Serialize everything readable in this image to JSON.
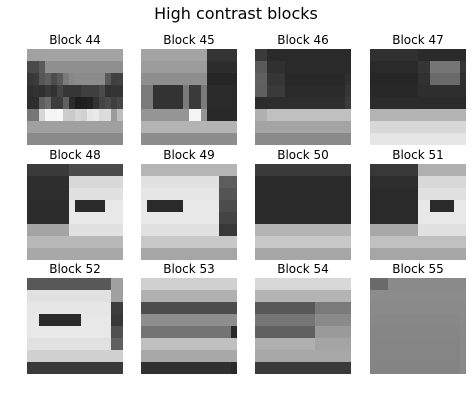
{
  "title": "High contrast blocks",
  "blocks": [
    {
      "label": "Block 44",
      "pixels": [
        "a1a1a2a3a3a3a3a3a3a3a3a3a3a3a3a3",
        "a1a1a2a3a3a3a3a3a3a3a3a3a3a3a3a3",
        "4a4a5a8f8f8f8f8f8f8f8f8f8f8f8f8f",
        "4a4a5a8f8f8f8f8f8f8f8f8f8f8f8f8f",
        "373b565f4c5a7b878b8b8b8b8b5a4042",
        "373b565f4c5a7b878b8b8b8b8b5a4042",
        "2f32303a32453636363f3f3f4b313534",
        "2f32303a32453636363f3f3f4b313534",
        "2d2d5f6c3d3d5f2b1c1f2232444b3f47",
        "2d2d5f6c3d3d5f2b1c1f2232444b3f47",
        "7777d7f5f5f7cccad5d0e6e9dbdd9cbe",
        "7777d7f5f5f7cccad5d0e6e9dbdd9cbe",
        "a0a0a0a0a0a0a0a0a0a0a0a0a0a0a0a0",
        "a0a0a0a0a0a0a0a0a0a0a0a0a0a0a0a0",
        "8a8a8a8a8a8a8a8a8a8a8a8a8a8a8a8a",
        "8a8a8a8a8a8a8a8a8a8a8a8a8a8a8a8a"
      ]
    },
    {
      "label": "Block 45",
      "pixels": [
        "a4a4a4a4a4a4a4a4a4a4a43434343434",
        "a4a4a4a4a4a4a4a4a4a4a43434343434",
        "9c9c9c9c9c9c9c9c9c9c9c2c2c2c2c2c",
        "9c9c9c9c9c9c9c9c9c9c9c2c2c2c2c2c",
        "8e8e8e8e8e8e8e8e8e8e8e2626262626",
        "8e8e8e8e8e8e8e8e8e8e8e2626262626",
        "7a7a33333333337a3a3a7a2a2a2a2a2a",
        "7a7a33333333337a3a3a7a2a2a2a2a2a",
        "7a7a33333333337a3a3a7a2a2a2a2a2a",
        "7a7a33333333337a3a3a7a2a2a2a2a2a",
        "9595959595959595f5f5952929292929",
        "9595959595959595f5f5952929292929",
        "b4b4b4b4b4b4b4b4b4b4b4b4b4b4b4b4",
        "b4b4b4b4b4b4b4b4b4b4b4b4b4b4b4b4",
        "8d8d8d8d8d8d8d8d8d8d8d8d8d8d8d8d",
        "8d8d8d8d8d8d8d8d8d8d8d8d8d8d8d8d"
      ]
    },
    {
      "label": "Block 46",
      "pixels": [
        "3a3a2a2a2a2a2a2a2a2a2a2a2a2a2a2a",
        "3a3a2a2a2a2a2a2a2a2a2a2a2a2a2a2a",
        "5a5a3030302a2a2a2a2a2a2a2a2a2a2a",
        "5a5a3030302a2a2a2a2a2a2a2a2a2a2a",
        "6060363636282828282828282828282f",
        "6060363636282828282828282828282f",
        "5f5f3a3a3a2a2a2a2a2a2a2a2a2a2a35",
        "5f5f3a3a3a2a2a2a2a2a2a2a2a2a2a35",
        "2c2c2d2d2d2d2d2d2d2d2d2d2d2d2d3a",
        "2c2c2d2d2d2d2d2d2d2d2d2d2d2d2d3a",
        "b0b0c0c0c0c0c0c0c0c0c0c0c0c0c0c0",
        "b0b0c0c0c0c0c0c0c0c0c0c0c0c0c0c0",
        "a4a4a4a4a4a4a4a4a4a4a4a4a4a4a4a4",
        "a4a4a4a4a4a4a4a4a4a4a4a4a4a4a4a4",
        "8a8a8a8a8a8a8a8a8a8a8a8a8a8a8a8a",
        "8a8a8a8a8a8a8a8a8a8a8a8a8a8a8a8a"
      ]
    },
    {
      "label": "Block 47",
      "pixels": [
        "30303030303030302a2a2a2a2a2a2a2a",
        "30303030303030302a2a2a2a2a2a2a2a",
        "2a2a2a2a2a2a2a2a3535757575757535",
        "2a2a2a2a2a2a2a2a3535757575757535",
        "262626262626262630306a6a6a6a6a30",
        "262626262626262630306a6a6a6a6a30",
        "28282828282828282e2e2e2e2e2e2e2e",
        "28282828282828282e2e2e2e2e2e2e2e",
        "2c2c2c2c2c2c2c2c2b2b2b2b2b2b2b2b",
        "2c2c2c2c2c2c2c2c2b2b2b2b2b2b2b2b",
        "b4b4b4b4b4b4b4b4b4b4b4b4b4b4b4b4",
        "b4b4b4b4b4b4b4b4b4b4b4b4b4b4b4b4",
        "d8d8d8d8d8d8d8d8d8d8d8d8d8d8d8d8",
        "d8d8d8d8d8d8d8d8d8d8d8d8d8d8d8d8",
        "e6e6e6e6e6e6e6e6e6e6e6e6e6e6e6e6",
        "e6e6e6e6e6e6e6e6e6e6e6e6e6e6e6e6"
      ]
    },
    {
      "label": "Block 48",
      "pixels": [
        "3a3a3a3a3a3a3a4b4b4b4b4b4b4b4b4b",
        "3a3a3a3a3a3a3a4b4b4b4b4b4b4b4b4b",
        "2e2e2e2e2e2e2ed8d8d8d8d8d8d8d8d8",
        "2e2e2e2e2e2e2ed8d8d8d8d8d8d8d8d8",
        "2e2e2e2e2e2e2ee1e1e1e1e1e1e1e1e1",
        "2e2e2e2e2e2e2ee1e1e1e1e1e1e1e1e1",
        "2c2c2c2c2c2c2ce82a2a2a2a2ae8e8e8",
        "2c2c2c2c2c2c2ce82a2a2a2a2ae8e8e8",
        "2c2c2c2c2c2c2ce8e8e8e8e8e8e8e8e8",
        "2c2c2c2c2c2c2ce8e8e8e8e8e8e8e8e8",
        "a4a4a4a4a4a4a4e1e1e1e1e1e1e1e1e1",
        "a4a4a4a4a4a4a4e1e1e1e1e1e1e1e1e1",
        "b8b8b8b8b8b8b8b8b8b8b8b8b8b8b8b8",
        "b8b8b8b8b8b8b8b8b8b8b8b8b8b8b8b8",
        "a8a8a8a8a8a8a8a8a8a8a8a8a8a8a8a8",
        "a8a8a8a8a8a8a8a8a8a8a8a8a8a8a8a8"
      ]
    },
    {
      "label": "Block 49",
      "pixels": [
        "b5b5b5b5b5b5b5b5b5b5b5b5b5b5b5b5",
        "b5b5b5b5b5b5b5b5b5b5b5b5b5b5b5b5",
        "e1e1e1e1e1e1e1e1e1e1e1e1e15d5d5d",
        "e1e1e1e1e1e1e1e1e1e1e1e1e15d5d5d",
        "e6e6e6e6e6e6e6e6e6e6e6e6e6545454",
        "e6e6e6e6e6e6e6e6e6e6e6e6e6545454",
        "e82a2a2a2a2a2ae8e8e8e8e8e84c4c4c",
        "e82a2a2a2a2a2ae8e8e8e8e8e84c4c4c",
        "e8e8e8e8e8e8e8e8e8e8e8e8e8444444",
        "e8e8e8e8e8e8e8e8e8e8e8e8e8444444",
        "e1e1e1e1e1e1e1e1e1e1e1e1e1383838",
        "e1e1e1e1e1e1e1e1e1e1e1e1e1383838",
        "c8c8c8c8c8c8c8c8c8c8c8c8c8c8c8c8",
        "c8c8c8c8c8c8c8c8c8c8c8c8c8c8c8c8",
        "a6a6a6a6a6a6a6a6a6a6a6a6a6a6a6a6",
        "a6a6a6a6a6a6a6a6a6a6a6a6a6a6a6a6"
      ]
    },
    {
      "label": "Block 50",
      "pixels": [
        "3a3a3a3a3a3a3a3a3a3a3a3a3a3a3a3a",
        "3a3a3a3a3a3a3a3a3a3a3a3a3a3a3a3a",
        "2a2a2a2a2a2a2a2a2a2a2a2a2a2a2a2a",
        "2a2a2a2a2a2a2a2a2a2a2a2a2a2a2a2a",
        "2a2a2a2a2a2a2a2a2a2a2a2a2a2a2a2a",
        "2a2a2a2a2a2a2a2a2a2a2a2a2a2a2a2a",
        "2a2a2a2a2a2a2a2a2a2a2a2a2a2a2a2a",
        "2a2a2a2a2a2a2a2a2a2a2a2a2a2a2a2a",
        "2a2a2a2a2a2a2a2a2a2a2a2a2a2a2a2a",
        "2a2a2a2a2a2a2a2a2a2a2a2a2a2a2a2a",
        "b4b4b4b4b4b4b4b4b4b4b4b4b4b4b4b4",
        "b4b4b4b4b4b4b4b4b4b4b4b4b4b4b4b4",
        "c8c8c8c8c8c8c8c8c8c8c8c8c8c8c8c8",
        "c8c8c8c8c8c8c8c8c8c8c8c8c8c8c8c8",
        "a6a6a6a6a6a6a6a6a6a6a6a6a6a6a6a6",
        "a6a6a6a6a6a6a6a6a6a6a6a6a6a6a6a6"
      ]
    },
    {
      "label": "Block 51",
      "pixels": [
        "3838383838383838b0b0b0b0b0b0b0b0",
        "3838383838383838b0b0b0b0b0b0b0b0",
        "2e2e2e2e2e2e2e2ed8d8d8d8d8d8d8d8",
        "2e2e2e2e2e2e2e2ed8d8d8d8d8d8d8d8",
        "2a2a2a2a2a2a2a2ae1e1e1e1e1e1e1e1",
        "2a2a2a2a2a2a2a2ae1e1e1e1e1e1e1e1",
        "2a2a2a2a2a2a2a2ae8e82a2a2a2ae8e8",
        "2a2a2a2a2a2a2a2ae8e82a2a2a2ae8e8",
        "2a2a2a2a2a2a2a2ae8e8e8e8e8e8e8e8",
        "2a2a2a2a2a2a2a2ae8e8e8e8e8e8e8e8",
        "a8a8a8a8a8a8a8a8e1e1e1e1e1e1e1e1",
        "a8a8a8a8a8a8a8a8e1e1e1e1e1e1e1e1",
        "c0c0c0c0c0c0c0c0c0c0c0c0c0c0c0c0",
        "c0c0c0c0c0c0c0c0c0c0c0c0c0c0c0c0",
        "a6a6a6a6a6a6a6a6a6a6a6a6a6a6a6a6",
        "a6a6a6a6a6a6a6a6a6a6a6a6a6a6a6a6"
      ]
    },
    {
      "label": "Block 52",
      "pixels": [
        "5858585858585858585858585858a0a0",
        "5858585858585858585858585858a0a0",
        "e1e1e1e1e1e1e1e1e1e1e1e1e1e1a0a0",
        "e1e1e1e1e1e1e1e1e1e1e1e1e1e1a0a0",
        "e6e6e6e6e6e6e6e6e6e6e6e6e6e63d3d",
        "e6e6e6e6e6e6e6e6e6e6e6e6e6e63d3d",
        "e8e82a2a2a2a2a2a2ae8e8e8e8e83838",
        "e8e82a2a2a2a2a2a2ae8e8e8e8e83838",
        "e8e8e8e8e8e8e8e8e8e8e8e8e8e85050",
        "e8e8e8e8e8e8e8e8e8e8e8e8e8e85050",
        "e1e1e1e1e1e1e1e1e1e1e1e1e1e16060",
        "e1e1e1e1e1e1e1e1e1e1e1e1e1e16060",
        "d0d0d0d0d0d0d0d0d0d0d0d0d0d0d0d0",
        "d0d0d0d0d0d0d0d0d0d0d0d0d0d0d0d0",
        "3a3a3a3a3a3a3a3a3a3a3a3a3a3a3a3a",
        "3a3a3a3a3a3a3a3a3a3a3a3a3a3a3a3a"
      ]
    },
    {
      "label": "Block 53",
      "pixels": [
        "d0d0d0d0d0d0d0d0d0d0d0d0d0d0d0d0",
        "d0d0d0d0d0d0d0d0d0d0d0d0d0d0d0d0",
        "b0b0b0b0b0b0b0b0b0b0b0b0b0b0b0b0",
        "b0b0b0b0b0b0b0b0b0b0b0b0b0b0b0b0",
        "4c4c4c4c4c4c4c4c4c4c4c4c4c4c4c4c",
        "4c4c4c4c4c4c4c4c4c4c4c4c4c4c4c4c",
        "8e8e8e8e8e8e8e8e8e8e8e8e8e8e8e8e",
        "8e8e8e8e8e8e8e8e8e8e8e8e8e8e8e8e",
        "7474747474747474747474747474742a",
        "7474747474747474747474747474742a",
        "c0c0c0c0c0c0c0c0c0c0c0c0c0c0c0c0",
        "c0c0c0c0c0c0c0c0c0c0c0c0c0c0c0c0",
        "a8a8a8a8a8a8a8a8a8a8a8a8a8a8a8a8",
        "a8a8a8a8a8a8a8a8a8a8a8a8a8a8a8a8",
        "3030303030303030303030303030302a",
        "3030303030303030303030303030302a"
      ]
    },
    {
      "label": "Block 54",
      "pixels": [
        "d8d8d8d8d8d8d8d8d8d8d8d8d8d8d8d8",
        "d8d8d8d8d8d8d8d8d8d8d8d8d8d8d8d8",
        "b4b4b4b4b4b4b4b4b4b4b4b4b4b4b4b4",
        "b4b4b4b4b4b4b4b4b4b4b4b4b4b4b4b4",
        "585858585858585858587a7a7a7a7a7a",
        "585858585858585858587a7a7a7a7a7a",
        "767676767676767676768a8a8a8a8a8a",
        "767676767676767676768a8a8a8a8a8a",
        "606060606060606060609a9a9a9a9a9a",
        "606060606060606060609a9a9a9a9a9a",
        "b0b0b0b0b0b0b0b0b0b0a4a4a4a4a4a4",
        "b0b0b0b0b0b0b0b0b0b0a4a4a4a4a4a4",
        "a8a8a8a8a8a8a8a8a8a8a8a8a8a8a8a8",
        "a8a8a8a8a8a8a8a8a8a8a8a8a8a8a8a8",
        "3a3a3a3a3a3a3a3a3a3a3a3a3a3a3a3a",
        "3a3a3a3a3a3a3a3a3a3a3a3a3a3a3a3a"
      ]
    },
    {
      "label": "Block 55",
      "pixels": [
        "6a6a6a8a8a8a8a8a8a8a8a8a8a8a8a8a",
        "6a6a6a8a8a8a8a8a8a8a8a8a8a8a8a8a",
        "8c8c8c8c8c8c8c8c8c8c8c8c8c8c8c8c",
        "8c8c8c8c8c8c8c8c8c8c8c8c8c8c8c8c",
        "8a8a8a8a8a8a8a8a8a8a8a8a8a8a8a8a",
        "8a8a8a8a8a8a8a8a8a8a8a8a8a8a8a8a",
        "8888888888888888888888888888888a",
        "8888888888888888888888888888888a",
        "8686868686868686868686868686868a",
        "8686868686868686868686868686868a",
        "8585858585858585858585858585858a",
        "8585858585858585858585858585858a",
        "8585858585858585858585858585858a",
        "8585858585858585858585858585858a",
        "8484848484848484848484848484848a",
        "8484848484848484848484848484848a"
      ]
    }
  ]
}
